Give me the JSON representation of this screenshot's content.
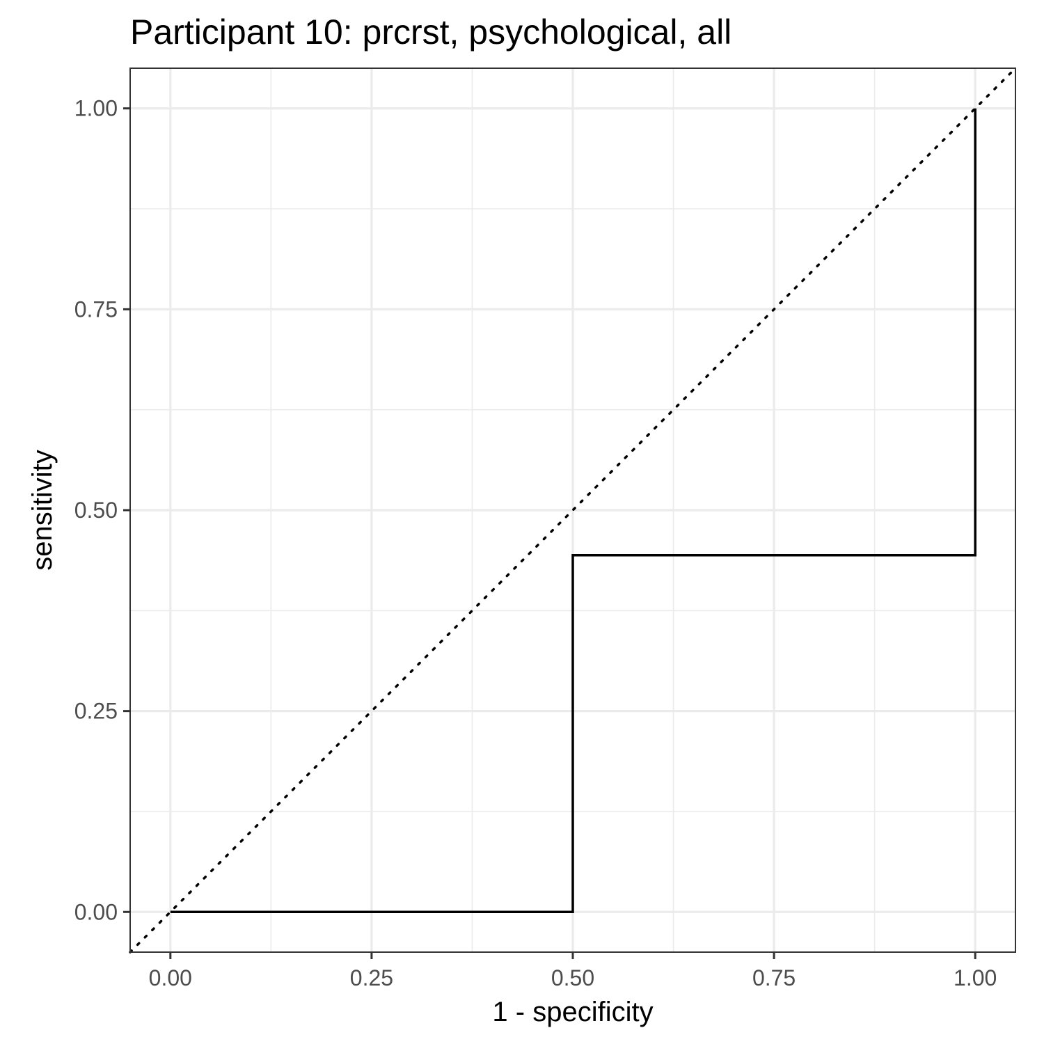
{
  "chart_data": {
    "type": "line",
    "title": "Participant 10: prcrst, psychological, all",
    "xlabel": "1 - specificity",
    "ylabel": "sensitivity",
    "xlim": [
      -0.05,
      1.05
    ],
    "ylim": [
      -0.05,
      1.05
    ],
    "x_ticks": [
      "0.00",
      "0.25",
      "0.50",
      "0.75",
      "1.00"
    ],
    "y_ticks": [
      "0.00",
      "0.25",
      "0.50",
      "0.75",
      "1.00"
    ],
    "x_tick_values": [
      0,
      0.25,
      0.5,
      0.75,
      1.0
    ],
    "y_tick_values": [
      0,
      0.25,
      0.5,
      0.75,
      1.0
    ],
    "minor_grid": [
      0.125,
      0.375,
      0.625,
      0.875
    ],
    "grid": true,
    "theme": "bw",
    "series": [
      {
        "style": "solid-step",
        "color": "#000000",
        "x": [
          0,
          0.5,
          0.5,
          1.0,
          1.0
        ],
        "y": [
          0,
          0,
          0.444,
          0.444,
          1.0
        ]
      }
    ],
    "reference_line": {
      "style": "dotted",
      "color": "#000000",
      "slope": 1,
      "intercept": 0
    }
  }
}
